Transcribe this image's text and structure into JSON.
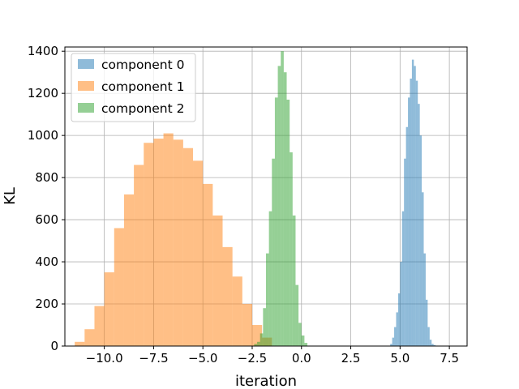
{
  "chart_data": {
    "type": "histogram",
    "title": "",
    "xlabel": "iteration",
    "ylabel": "KL",
    "xlim": [
      -12.0,
      8.4
    ],
    "ylim": [
      0,
      1420
    ],
    "x_ticks": [
      -10.0,
      -7.5,
      -5.0,
      -2.5,
      0.0,
      2.5,
      5.0,
      7.5
    ],
    "x_tick_labels": [
      "−10.0",
      "−7.5",
      "−5.0",
      "−2.5",
      "0.0",
      "2.5",
      "5.0",
      "7.5"
    ],
    "y_ticks": [
      0,
      200,
      400,
      600,
      800,
      1000,
      1200,
      1400
    ],
    "y_tick_labels": [
      "0",
      "200",
      "400",
      "600",
      "800",
      "1000",
      "1200",
      "1400"
    ],
    "grid": true,
    "legend_position": "top-left",
    "series": [
      {
        "name": "component 0",
        "color": "#1f77b4",
        "opacity": 0.5,
        "bin_start": 4.5,
        "bin_width": 0.1,
        "values": [
          10,
          40,
          90,
          160,
          250,
          400,
          640,
          890,
          1040,
          1180,
          1270,
          1360,
          1330,
          1260,
          1150,
          1000,
          730,
          440,
          220,
          90,
          30,
          10,
          5,
          2,
          1,
          1,
          1,
          1,
          1,
          1,
          1,
          1,
          1
        ]
      },
      {
        "name": "component 1",
        "color": "#ff7f0e",
        "opacity": 0.5,
        "bin_start": -11.5,
        "bin_width": 0.5,
        "values": [
          20,
          80,
          190,
          350,
          560,
          720,
          860,
          965,
          985,
          1010,
          980,
          940,
          880,
          770,
          620,
          470,
          330,
          200,
          100,
          40
        ]
      },
      {
        "name": "component 2",
        "color": "#2ca02c",
        "opacity": 0.5,
        "bin_start": -2.4,
        "bin_width": 0.15,
        "values": [
          10,
          20,
          60,
          180,
          440,
          640,
          890,
          1180,
          1330,
          1400,
          1300,
          1170,
          920,
          620,
          290,
          110,
          50,
          15
        ]
      }
    ]
  }
}
